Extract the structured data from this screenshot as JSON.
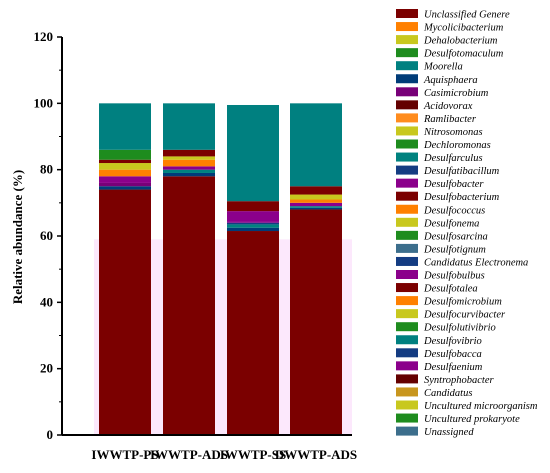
{
  "chart_data": {
    "type": "bar",
    "stacked": true,
    "title": "",
    "xlabel": "",
    "ylabel": "Relative abundance (%)",
    "ylim": [
      0,
      120
    ],
    "yticks": [
      0,
      20,
      40,
      60,
      80,
      100,
      120
    ],
    "grid": false,
    "legend_position": "right",
    "categories": [
      "IWWTP-PS",
      "IWWTP-ADS",
      "IWWTP-SS",
      "DWWTP-ADS"
    ],
    "series": [
      {
        "name": "Unclassified Genere",
        "color": "#7b0000",
        "values": [
          74.0,
          78.0,
          61.5,
          68.0
        ]
      },
      {
        "name": "Mycolicibacterium",
        "color": "#ff8000",
        "values": [
          0,
          0,
          0,
          0
        ]
      },
      {
        "name": "Dehalobacterium",
        "color": "#c8c81e",
        "values": [
          0,
          0,
          0,
          0
        ]
      },
      {
        "name": "Desulfotomaculum",
        "color": "#1e8c1e",
        "values": [
          0,
          0,
          0,
          0
        ]
      },
      {
        "name": "Moorella",
        "color": "#008080",
        "values": [
          0,
          0,
          0,
          0
        ]
      },
      {
        "name": "Aquisphaera",
        "color": "#003c78",
        "values": [
          1.0,
          1.0,
          1.0,
          0.5
        ]
      },
      {
        "name": "Casimicrobium",
        "color": "#780078",
        "values": [
          1.0,
          0,
          0,
          0
        ]
      },
      {
        "name": "Acidovorax",
        "color": "#640000",
        "values": [
          0,
          0,
          0,
          0
        ]
      },
      {
        "name": "Ramlibacter",
        "color": "#ff8c1e",
        "values": [
          0,
          0,
          0,
          0
        ]
      },
      {
        "name": "Nitrosomonas",
        "color": "#c8c81e",
        "values": [
          0,
          0,
          0,
          0
        ]
      },
      {
        "name": "Dechloromonas",
        "color": "#1e8c1e",
        "values": [
          0,
          0,
          0,
          0
        ]
      },
      {
        "name": "Desulfarculus",
        "color": "#00827f",
        "values": [
          0,
          1.0,
          1.0,
          0.5
        ]
      },
      {
        "name": "Desulfatibacillum",
        "color": "#143c82",
        "values": [
          0,
          0,
          0.5,
          0
        ]
      },
      {
        "name": "Desulfobacter",
        "color": "#8b008b",
        "values": [
          2.0,
          1.0,
          0.5,
          1.0
        ]
      },
      {
        "name": "Desulfobacterium",
        "color": "#7b0000",
        "values": [
          0,
          0,
          0,
          0
        ]
      },
      {
        "name": "Desulfococcus",
        "color": "#ff8000",
        "values": [
          2.0,
          2.0,
          0,
          1.0
        ]
      },
      {
        "name": "Desulfonema",
        "color": "#c8c81e",
        "values": [
          2.0,
          1.0,
          0,
          1.5
        ]
      },
      {
        "name": "Desulfosarcina",
        "color": "#1e8c1e",
        "values": [
          0,
          0,
          0,
          0
        ]
      },
      {
        "name": "Desulfotignum",
        "color": "#3c6e8c",
        "values": [
          0,
          0,
          0,
          0
        ]
      },
      {
        "name": "Candidatus Electronema",
        "color": "#143c82",
        "values": [
          0,
          0,
          0,
          0
        ]
      },
      {
        "name": "Desulfobulbus",
        "color": "#8b008b",
        "values": [
          0,
          0,
          3.0,
          0
        ]
      },
      {
        "name": "Desulfotalea",
        "color": "#7b0000",
        "values": [
          1.0,
          2.0,
          3.0,
          2.5
        ]
      },
      {
        "name": "Desulfomicrobium",
        "color": "#ff8000",
        "values": [
          0,
          0,
          0,
          0
        ]
      },
      {
        "name": "Desulfocurvibacter",
        "color": "#c8c81e",
        "values": [
          0,
          0,
          0,
          0
        ]
      },
      {
        "name": "Desulfolutivibrio",
        "color": "#1e8c1e",
        "values": [
          3.0,
          0,
          0,
          0
        ]
      },
      {
        "name": "Desulfovibrio",
        "color": "#008080",
        "values": [
          14.0,
          14.0,
          29.0,
          25.0
        ]
      },
      {
        "name": "Desulfobacca",
        "color": "#143c82",
        "values": [
          0,
          0,
          0,
          0
        ]
      },
      {
        "name": "Desulfaenium",
        "color": "#8b008b",
        "values": [
          0,
          0,
          0,
          0
        ]
      },
      {
        "name": "Syntrophobacter",
        "color": "#640000",
        "values": [
          0,
          0,
          0,
          0
        ]
      },
      {
        "name": "Candidatus",
        "color": "#c8961e",
        "values": [
          0,
          0,
          0,
          0
        ]
      },
      {
        "name": "Uncultured microorganism",
        "color": "#c8c81e",
        "values": [
          0,
          0,
          0,
          0
        ]
      },
      {
        "name": "Uncultured prokaryote",
        "color": "#1e8c1e",
        "values": [
          0,
          0,
          0,
          0
        ]
      },
      {
        "name": "Unassigned",
        "color": "#3c6e8c",
        "values": [
          0,
          0,
          0,
          0
        ]
      }
    ]
  }
}
